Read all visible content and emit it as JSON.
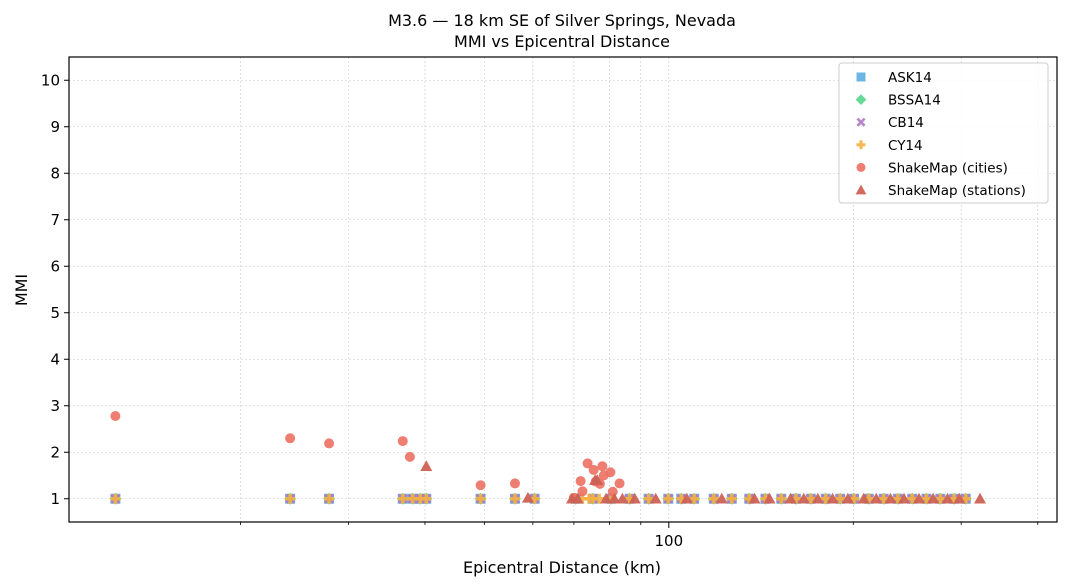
{
  "chart_data": {
    "type": "scatter",
    "title": "M3.6 — 18 km SE of Silver Springs, Nevada",
    "subtitle": "MMI vs Epicentral Distance",
    "xlabel": "Epicentral Distance (km)",
    "ylabel": "MMI",
    "x_scale": "log",
    "xlim": [
      10.5,
      430
    ],
    "ylim": [
      0.5,
      10.5
    ],
    "x_tick_labels": [
      {
        "value": 100,
        "label": "100"
      }
    ],
    "x_minor_ticks": [
      20,
      30,
      40,
      50,
      60,
      70,
      80,
      90,
      200,
      300,
      400
    ],
    "y_ticks": [
      1,
      2,
      3,
      4,
      5,
      6,
      7,
      8,
      9,
      10
    ],
    "grid": true,
    "legend_placement": "top-right",
    "colors": {
      "ASK14": "#5dade2",
      "BSSA14": "#58d68d",
      "CB14": "#af7ac5",
      "CY14": "#f5b041",
      "ShakeMap (cities)": "#ec7063",
      "ShakeMap (stations)": "#cd6155"
    },
    "series": [
      {
        "name": "ASK14",
        "marker": "square",
        "color": "#5dade2",
        "x": [
          12.5,
          24.1,
          27.9,
          36.8,
          38.2,
          39.3,
          40.2,
          49.3,
          56.1,
          60.4,
          70.5,
          75.2,
          80.4,
          86.3,
          92.7,
          99.8,
          104.8,
          110.0,
          118.4,
          126.7,
          135.3,
          143.8,
          152.6,
          161.2,
          170.5,
          180.3,
          190.4,
          200.6,
          212.0,
          224.2,
          236.5,
          249.6,
          263.3,
          277.4,
          292.1,
          305.2
        ],
        "y": [
          1,
          1,
          1,
          1,
          1,
          1,
          1,
          1,
          1,
          1,
          1,
          1,
          1,
          1,
          1,
          1,
          1,
          1,
          1,
          1,
          1,
          1,
          1,
          1,
          1,
          1,
          1,
          1,
          1,
          1,
          1,
          1,
          1,
          1,
          1,
          1
        ]
      },
      {
        "name": "BSSA14",
        "marker": "diamond",
        "color": "#58d68d",
        "x": [
          12.5,
          24.1,
          27.9,
          36.8,
          38.2,
          39.3,
          40.2,
          49.3,
          56.1,
          60.4,
          70.5,
          75.2,
          80.4,
          86.3,
          92.7,
          99.8,
          104.8,
          110.0,
          118.4,
          126.7,
          135.3,
          143.8,
          152.6,
          161.2,
          170.5,
          180.3,
          190.4,
          200.6,
          212.0,
          224.2,
          236.5,
          249.6,
          263.3,
          277.4,
          292.1,
          305.2
        ],
        "y": [
          1,
          1,
          1,
          1,
          1,
          1,
          1,
          1,
          1,
          1,
          1,
          1,
          1,
          1,
          1,
          1,
          1,
          1,
          1,
          1,
          1,
          1,
          1,
          1,
          1,
          1,
          1,
          1,
          1,
          1,
          1,
          1,
          1,
          1,
          1,
          1
        ]
      },
      {
        "name": "CB14",
        "marker": "x",
        "color": "#af7ac5",
        "x": [
          12.5,
          24.1,
          27.9,
          36.8,
          38.2,
          39.3,
          40.2,
          49.3,
          56.1,
          60.4,
          70.5,
          75.2,
          80.4,
          86.3,
          92.7,
          99.8,
          104.8,
          110.0,
          118.4,
          126.7,
          135.3,
          143.8,
          152.6,
          161.2,
          170.5,
          180.3,
          190.4,
          200.6,
          212.0,
          224.2,
          236.5,
          249.6,
          263.3,
          277.4,
          292.1,
          305.2
        ],
        "y": [
          1,
          1,
          1,
          1,
          1,
          1,
          1,
          1,
          1,
          1,
          1,
          1,
          1,
          1,
          1,
          1,
          1,
          1,
          1,
          1,
          1,
          1,
          1,
          1,
          1,
          1,
          1,
          1,
          1,
          1,
          1,
          1,
          1,
          1,
          1,
          1
        ]
      },
      {
        "name": "CY14",
        "marker": "plus",
        "color": "#f5b041",
        "x": [
          12.5,
          24.1,
          27.9,
          36.8,
          38.2,
          39.3,
          40.2,
          49.3,
          56.1,
          60.4,
          70.5,
          72.3,
          74.1,
          75.2,
          77.0,
          80.4,
          86.3,
          92.7,
          99.8,
          104.8,
          110.0,
          118.4,
          126.7,
          135.3,
          143.8,
          152.6,
          161.2,
          170.5,
          180.3,
          190.4,
          200.6,
          212.0,
          224.2,
          236.5,
          249.6,
          263.3,
          277.4,
          292.1,
          305.2
        ],
        "y": [
          1,
          1,
          1,
          1,
          1,
          1,
          1,
          1,
          1,
          1,
          1,
          1,
          1,
          1,
          1,
          1,
          1,
          1,
          1,
          1,
          1,
          1,
          1,
          1,
          1,
          1,
          1,
          1,
          1,
          1,
          1,
          1,
          1,
          1,
          1,
          1,
          1,
          1,
          1
        ]
      },
      {
        "name": "ShakeMap (cities)",
        "marker": "circle",
        "color": "#ec7063",
        "x": [
          12.5,
          24.1,
          27.9,
          36.8,
          37.8,
          49.3,
          56.1,
          70.0,
          71.8,
          72.3,
          73.7,
          75.4,
          76.0,
          77.2,
          77.9,
          78.3,
          80.3,
          81.0,
          83.1
        ],
        "y": [
          2.78,
          2.3,
          2.19,
          2.24,
          1.9,
          1.29,
          1.33,
          1.02,
          1.38,
          1.16,
          1.76,
          1.62,
          1.37,
          1.32,
          1.7,
          1.5,
          1.57,
          1.15,
          1.33
        ]
      },
      {
        "name": "ShakeMap (stations)",
        "marker": "triangle",
        "color": "#cd6155",
        "x": [
          40.2,
          58.9,
          69.5,
          71.0,
          75.8,
          76.4,
          79.0,
          81.5,
          84.0,
          88.0,
          95.2,
          107.0,
          122.0,
          138.0,
          146.0,
          158.0,
          166.0,
          175.0,
          185.0,
          196.0,
          208.0,
          218.0,
          230.0,
          242.0,
          256.0,
          270.0,
          285.0,
          298.0,
          322.0
        ],
        "y": [
          1.7,
          1.02,
          1.0,
          1.0,
          1.4,
          1.4,
          1.0,
          1.0,
          1.0,
          1.0,
          1.0,
          1.0,
          1.0,
          1.0,
          1.0,
          1.0,
          1.0,
          1.0,
          1.0,
          1.0,
          1.0,
          1.0,
          1.0,
          1.0,
          1.0,
          1.0,
          1.0,
          1.0,
          1.0
        ]
      }
    ]
  }
}
